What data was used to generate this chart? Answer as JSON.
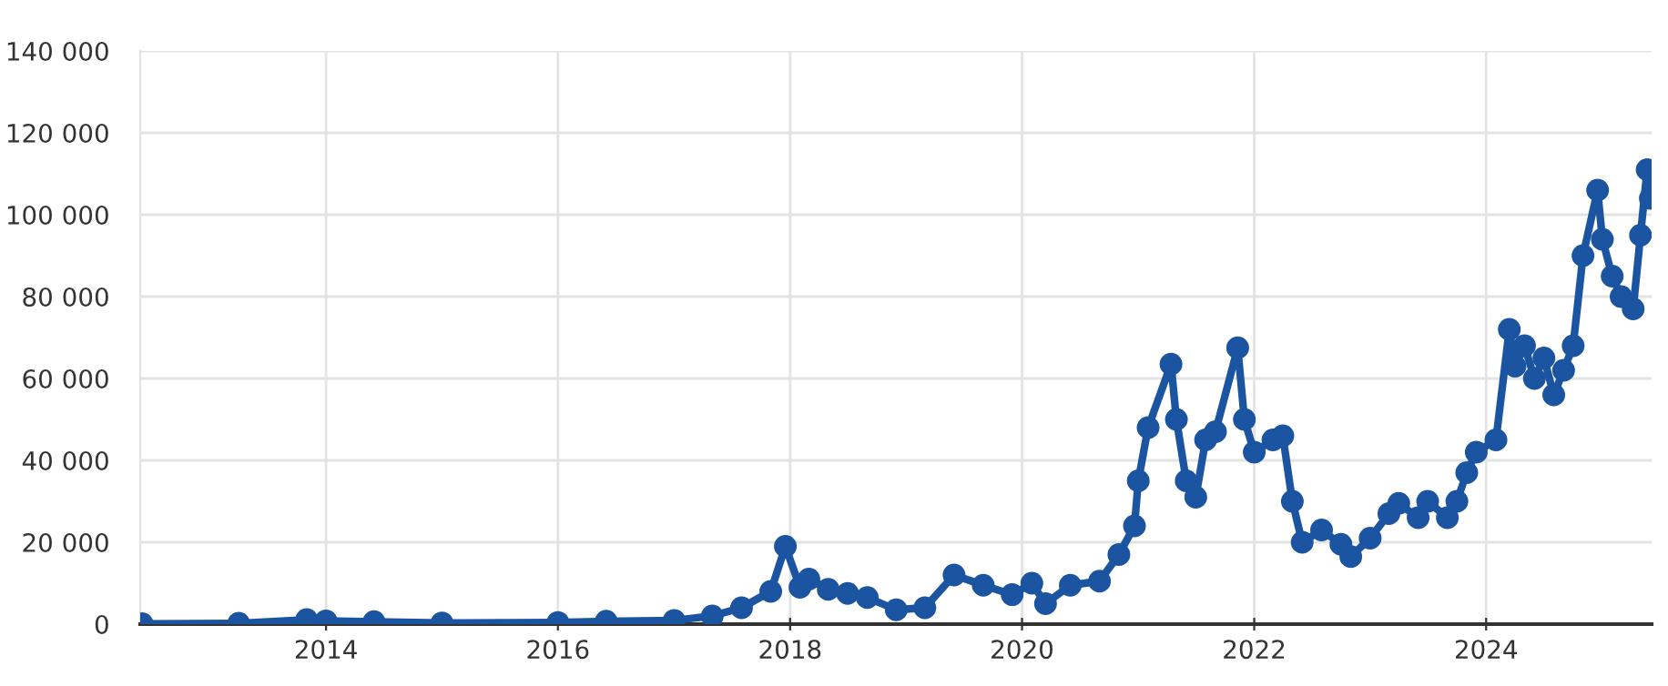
{
  "chart_data": {
    "type": "line",
    "marker": "circle",
    "line_style": "solid",
    "grid": true,
    "legend": false,
    "xlim": [
      "2012-05-26",
      "2025-06-05"
    ],
    "xticks": [
      {
        "value": "2014-01-01",
        "label": "2014"
      },
      {
        "value": "2016-01-01",
        "label": "2016"
      },
      {
        "value": "2018-01-01",
        "label": "2018"
      },
      {
        "value": "2020-01-01",
        "label": "2020"
      },
      {
        "value": "2022-01-01",
        "label": "2022"
      },
      {
        "value": "2024-01-01",
        "label": "2024"
      }
    ],
    "ylim": [
      0,
      140000
    ],
    "yticks": [
      0,
      {
        "value": 20000,
        "label": "20 000"
      },
      {
        "value": 40000,
        "label": "40 000"
      },
      {
        "value": 60000,
        "label": "60 000"
      },
      {
        "value": 80000,
        "label": "80 000"
      },
      {
        "value": 100000,
        "label": "100 000"
      },
      {
        "value": 120000,
        "label": "120 000"
      },
      {
        "value": 140000,
        "label": "140 000"
      }
    ],
    "series": [
      {
        "color": "#1b54a0",
        "x": [
          "2012-06",
          "2013-04",
          "2013-11",
          "2014-01",
          "2014-06",
          "2015-01",
          "2016-01",
          "2016-06",
          "2017-01",
          "2017-05",
          "2017-08",
          "2017-11",
          "2017-12-17",
          "2018-02",
          "2018-03",
          "2018-05",
          "2018-07",
          "2018-09",
          "2018-12",
          "2019-03",
          "2019-06",
          "2019-09",
          "2019-12",
          "2020-02",
          "2020-03-15",
          "2020-06",
          "2020-09",
          "2020-11",
          "2020-12-20",
          "2021-01",
          "2021-02",
          "2021-04-14",
          "2021-05",
          "2021-06",
          "2021-07",
          "2021-08",
          "2021-09",
          "2021-11-10",
          "2021-12",
          "2022-01",
          "2022-03",
          "2022-04",
          "2022-05",
          "2022-06",
          "2022-08",
          "2022-10",
          "2022-11",
          "2023-01",
          "2023-03",
          "2023-04",
          "2023-06",
          "2023-07",
          "2023-09",
          "2023-10",
          "2023-11",
          "2023-12",
          "2024-02",
          "2024-03-14",
          "2024-04",
          "2024-05",
          "2024-06",
          "2024-07",
          "2024-08",
          "2024-09",
          "2024-10",
          "2024-11",
          "2024-12-17",
          "2025-01",
          "2025-02",
          "2025-03",
          "2025-04-08",
          "2025-05",
          "2025-05-22",
          "2025-06-01"
        ],
        "values": [
          100,
          200,
          1100,
          800,
          600,
          300,
          400,
          700,
          900,
          2000,
          4000,
          8000,
          19000,
          9000,
          11000,
          8500,
          7500,
          6500,
          3500,
          4000,
          12000,
          9500,
          7200,
          10000,
          5000,
          9500,
          10500,
          17000,
          24000,
          35000,
          48000,
          63500,
          50000,
          35000,
          31000,
          45000,
          47000,
          67500,
          50000,
          42000,
          45000,
          46000,
          30000,
          20000,
          23000,
          19500,
          16500,
          21000,
          27000,
          29500,
          26000,
          30000,
          26000,
          30000,
          37000,
          42000,
          45000,
          72000,
          63000,
          68000,
          60000,
          65000,
          56000,
          62000,
          68000,
          90000,
          106000,
          94000,
          85000,
          80000,
          77000,
          95000,
          111000,
          104000
        ]
      }
    ]
  }
}
